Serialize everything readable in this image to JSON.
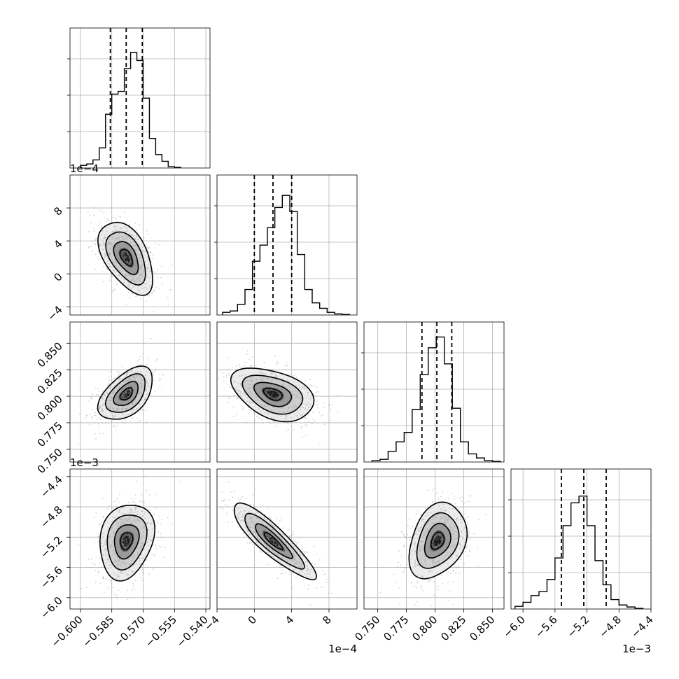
{
  "chart_data": {
    "type": "corner",
    "grid": true,
    "panels": [
      {
        "row": 0,
        "col": 0,
        "type": "histogram",
        "xlim": [
          -0.605,
          -0.538
        ],
        "bin_edges": [
          -0.6,
          -0.597,
          -0.594,
          -0.591,
          -0.588,
          -0.585,
          -0.582,
          -0.579,
          -0.576,
          -0.573,
          -0.57,
          -0.567,
          -0.564,
          -0.561,
          -0.558,
          -0.555,
          -0.552
        ],
        "counts": [
          0.02,
          0.03,
          0.06,
          0.15,
          0.4,
          0.55,
          0.57,
          0.74,
          0.86,
          0.8,
          0.52,
          0.22,
          0.1,
          0.05,
          0.01,
          0.005
        ],
        "quantiles": [
          -0.5857,
          -0.5781,
          -0.5704
        ],
        "ymax": 1.0,
        "xticks": [
          "-0.600",
          "-0.585",
          "-0.570",
          "-0.555",
          "-0.540"
        ],
        "xtick_values": [
          -0.6,
          -0.585,
          -0.57,
          -0.555,
          -0.54
        ]
      },
      {
        "row": 1,
        "col": 1,
        "type": "histogram",
        "xlim": [
          -4.0,
          11.0
        ],
        "bin_edges": [
          -3.4,
          -2.6,
          -1.8,
          -1.0,
          -0.2,
          0.6,
          1.4,
          2.2,
          3.0,
          3.8,
          4.6,
          5.4,
          6.2,
          7.0,
          7.8,
          8.6,
          9.4,
          10.2
        ],
        "counts": [
          0.02,
          0.03,
          0.08,
          0.19,
          0.4,
          0.52,
          0.65,
          0.8,
          0.89,
          0.77,
          0.45,
          0.19,
          0.09,
          0.05,
          0.02,
          0.008,
          0.004
        ],
        "quantiles": [
          0.0,
          2.0,
          4.0
        ],
        "ymax": 1.0,
        "xticks": [
          "-4",
          "0",
          "4",
          "8"
        ],
        "xtick_values": [
          -4,
          0,
          4,
          8
        ],
        "offset_label": "1e−4"
      },
      {
        "row": 2,
        "col": 2,
        "type": "histogram",
        "xlim": [
          0.738,
          0.86
        ],
        "bin_edges": [
          0.745,
          0.752,
          0.759,
          0.766,
          0.773,
          0.78,
          0.787,
          0.794,
          0.801,
          0.808,
          0.815,
          0.822,
          0.829,
          0.836,
          0.843,
          0.85,
          0.857
        ],
        "counts": [
          0.01,
          0.02,
          0.08,
          0.15,
          0.22,
          0.39,
          0.65,
          0.85,
          0.93,
          0.73,
          0.4,
          0.15,
          0.06,
          0.03,
          0.01,
          0.005
        ],
        "quantiles": [
          0.7885,
          0.8015,
          0.8145
        ],
        "ymax": 1.0,
        "xticks": [
          "0.750",
          "0.775",
          "0.800",
          "0.825",
          "0.850"
        ],
        "xtick_values": [
          0.75,
          0.775,
          0.8,
          0.825,
          0.85
        ]
      },
      {
        "row": 3,
        "col": 3,
        "type": "histogram",
        "xlim": [
          -6.15,
          -4.4
        ],
        "bin_edges": [
          -6.1,
          -6.0,
          -5.9,
          -5.8,
          -5.7,
          -5.6,
          -5.5,
          -5.4,
          -5.3,
          -5.2,
          -5.1,
          -5.0,
          -4.9,
          -4.8,
          -4.7,
          -4.6,
          -4.5
        ],
        "counts": [
          0.02,
          0.05,
          0.1,
          0.13,
          0.22,
          0.38,
          0.62,
          0.79,
          0.84,
          0.62,
          0.36,
          0.18,
          0.07,
          0.03,
          0.015,
          0.005
        ],
        "quantiles": [
          -5.52,
          -5.24,
          -4.96
        ],
        "ymax": 1.0,
        "xticks": [
          "-6.0",
          "-5.6",
          "-5.2",
          "-4.8",
          "-4.4"
        ],
        "xtick_values": [
          -6.0,
          -5.6,
          -5.2,
          -4.8,
          -4.4
        ],
        "offset_label": "1e−3"
      },
      {
        "row": 1,
        "col": 0,
        "type": "scatter_contour",
        "x": {
          "mean": -0.578,
          "sd": 0.0065,
          "lim": [
            -0.605,
            -0.538
          ]
        },
        "y": {
          "mean": 2.0,
          "sd": 2.2,
          "lim": [
            -5,
            12
          ]
        },
        "corr": -0.5,
        "yticks": [
          "−4",
          "0",
          "4",
          "8"
        ],
        "ytick_values": [
          -4,
          0,
          4,
          8
        ],
        "offset_label": "1e−4"
      },
      {
        "row": 2,
        "col": 0,
        "type": "scatter_contour",
        "x": {
          "mean": -0.578,
          "sd": 0.0065,
          "lim": [
            -0.605,
            -0.538
          ]
        },
        "y": {
          "mean": 0.802,
          "sd": 0.0125,
          "lim": [
            0.738,
            0.87
          ]
        },
        "corr": 0.5,
        "yticks": [
          "0.750",
          "0.775",
          "0.800",
          "0.825",
          "0.850"
        ],
        "ytick_values": [
          0.75,
          0.775,
          0.8,
          0.825,
          0.85
        ]
      },
      {
        "row": 2,
        "col": 1,
        "type": "scatter_contour",
        "x": {
          "mean": 2.0,
          "sd": 2.2,
          "lim": [
            -4.0,
            11.0
          ]
        },
        "y": {
          "mean": 0.802,
          "sd": 0.0125,
          "lim": [
            0.738,
            0.87
          ]
        },
        "corr": -0.4
      },
      {
        "row": 3,
        "col": 0,
        "type": "scatter_contour",
        "x": {
          "mean": -0.578,
          "sd": 0.0065,
          "lim": [
            -0.605,
            -0.538
          ]
        },
        "y": {
          "mean": -5.25,
          "sd": 0.25,
          "lim": [
            -6.15,
            -4.3
          ]
        },
        "corr": 0.2,
        "yticks": [
          "−6.0",
          "−5.6",
          "−5.2",
          "−4.8",
          "−4.4"
        ],
        "ytick_values": [
          -6.0,
          -5.6,
          -5.2,
          -4.8,
          -4.4
        ],
        "offset_label": "1e−3"
      },
      {
        "row": 3,
        "col": 1,
        "type": "scatter_contour",
        "x": {
          "mean": 2.0,
          "sd": 2.2,
          "lim": [
            -4.0,
            11.0
          ]
        },
        "y": {
          "mean": -5.25,
          "sd": 0.25,
          "lim": [
            -6.15,
            -4.3
          ]
        },
        "corr": -0.88
      },
      {
        "row": 3,
        "col": 2,
        "type": "scatter_contour",
        "x": {
          "mean": 0.802,
          "sd": 0.0125,
          "lim": [
            0.738,
            0.86
          ]
        },
        "y": {
          "mean": -5.25,
          "sd": 0.25,
          "lim": [
            -6.15,
            -4.3
          ]
        },
        "corr": 0.3
      }
    ]
  }
}
